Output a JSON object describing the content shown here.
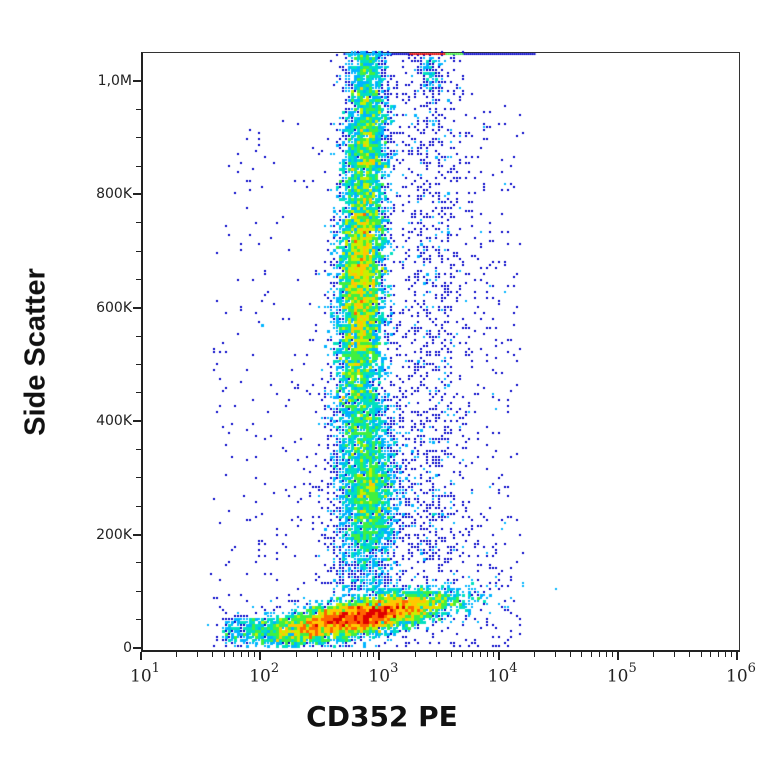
{
  "chart_data": {
    "type": "scatter",
    "subtype": "flow-cytometry-density-dot-plot",
    "title": "",
    "xlabel": "CD352 PE",
    "ylabel": "Side Scatter",
    "x_scale": "log",
    "xlim": [
      10,
      1000000
    ],
    "y_scale": "linear",
    "ylim": [
      0,
      1050000
    ],
    "grid": false,
    "legend": null,
    "x_ticks": [
      {
        "value": 10,
        "base": "10",
        "exp": "1"
      },
      {
        "value": 100,
        "base": "10",
        "exp": "2"
      },
      {
        "value": 1000,
        "base": "10",
        "exp": "3"
      },
      {
        "value": 10000,
        "base": "10",
        "exp": "4"
      },
      {
        "value": 100000,
        "base": "10",
        "exp": "5"
      },
      {
        "value": 1000000,
        "base": "10",
        "exp": "6"
      }
    ],
    "y_ticks": [
      {
        "value": 0,
        "label": "0"
      },
      {
        "value": 200000,
        "label": "200K"
      },
      {
        "value": 400000,
        "label": "400K"
      },
      {
        "value": 600000,
        "label": "600K"
      },
      {
        "value": 800000,
        "label": "800K"
      },
      {
        "value": 1000000,
        "label": "1,0M"
      }
    ],
    "colormap": [
      "#0000c8",
      "#0050ff",
      "#00b4ff",
      "#00e0c0",
      "#40f040",
      "#c8f000",
      "#ffc800",
      "#ff6400",
      "#e00000"
    ],
    "populations": [
      {
        "name": "high-SSC granulocyte-like cluster",
        "x_center": 700,
        "y_center": 650000,
        "y_range": [
          380000,
          1050000
        ],
        "peak_density": "red",
        "count": 9000
      },
      {
        "name": "mid-SSC monocyte-like cluster",
        "x_center": 800,
        "y_center": 270000,
        "y_range": [
          160000,
          400000
        ],
        "peak_density": "cyan-green",
        "count": 2200
      },
      {
        "name": "low-SSC lymphocyte-like band",
        "x_range": [
          60,
          8000
        ],
        "y_center": 60000,
        "y_range": [
          0,
          130000
        ],
        "peak_density": "red",
        "peak_x": 700,
        "count": 9000
      },
      {
        "name": "CD352-bright sparse events",
        "x_center": 3000,
        "y_range": [
          150000,
          1050000
        ],
        "peak_density": "blue",
        "count": 900
      },
      {
        "name": "top saturation band",
        "y_value": 1045000,
        "x_range": [
          500,
          20000
        ],
        "count": 500
      },
      {
        "name": "background scatter",
        "x_range": [
          12,
          20000
        ],
        "y_range": [
          0,
          1000000
        ],
        "count": 700
      }
    ]
  }
}
